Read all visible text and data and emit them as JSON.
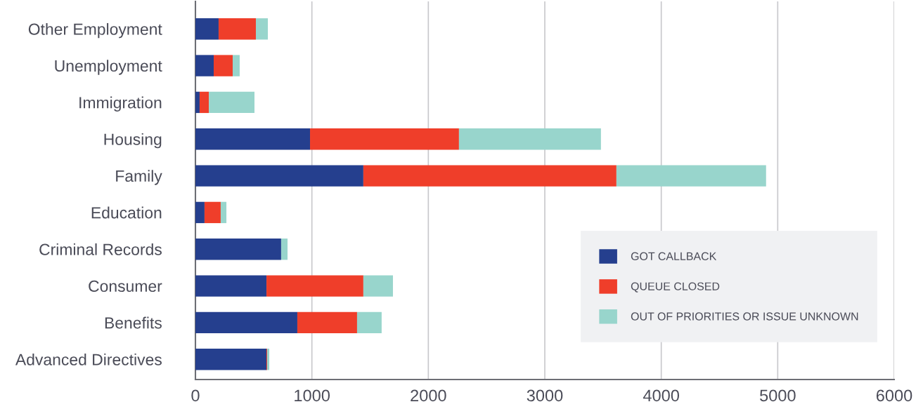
{
  "chart_data": {
    "type": "bar",
    "orientation": "horizontal",
    "stacked": true,
    "categories": [
      "Other Employment",
      "Unemployment",
      "Immigration",
      "Housing",
      "Family",
      "Education",
      "Criminal Records",
      "Consumer",
      "Benefits",
      "Advanced Directives"
    ],
    "series": [
      {
        "name": "GOT CALLBACK",
        "color": "#253f8e",
        "values": [
          199,
          157,
          36,
          984,
          1442,
          78,
          736,
          610,
          875,
          610
        ]
      },
      {
        "name": "QUEUE CLOSED",
        "color": "#ef3e2a",
        "values": [
          320,
          163,
          79,
          1279,
          2173,
          139,
          0,
          832,
          513,
          6
        ]
      },
      {
        "name": "OUT OF PRIORITIES OR ISSUE UNKNOWN",
        "color": "#98d5cc",
        "values": [
          103,
          60,
          392,
          1219,
          1285,
          49,
          55,
          254,
          211,
          18
        ]
      }
    ],
    "xlim": [
      0,
      6000
    ],
    "xticks": [
      0,
      1000,
      2000,
      3000,
      4000,
      5000,
      6000
    ],
    "grid": "x",
    "legend": "bottom right"
  }
}
